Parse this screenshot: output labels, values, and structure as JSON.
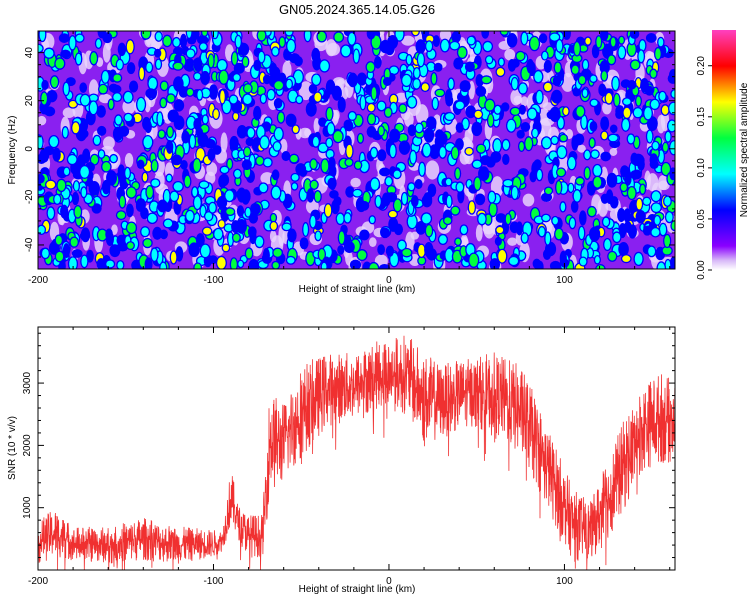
{
  "title": "GN05.2024.365.14.05.G26",
  "chart_data": [
    {
      "type": "heatmap",
      "xlabel": "Height of straight line (km)",
      "ylabel": "Frequency (Hz)",
      "xlim": [
        -200,
        163
      ],
      "ylim": [
        -50,
        49
      ],
      "x_ticks": [
        -200,
        -100,
        0,
        100
      ],
      "y_ticks": [
        -40,
        -20,
        0,
        20,
        40
      ],
      "colorbar": {
        "label": "Normalized spectral amplitude",
        "range": [
          0.0,
          0.235
        ],
        "ticks": [
          "0.00",
          "0.05",
          "0.10",
          "0.15",
          "0.20"
        ],
        "tick_values": [
          0.0,
          0.05,
          0.1,
          0.15,
          0.2
        ]
      },
      "colormap": [
        "#ffffff",
        "#b060f0",
        "#7a00ff",
        "#0000ff",
        "#00ffff",
        "#00ff40",
        "#ffff00",
        "#ff0000",
        "#ff40c0"
      ],
      "background_level": 0.03,
      "blob_level_range": [
        0.05,
        0.14
      ]
    },
    {
      "type": "line",
      "xlabel": "Height of straight line (km)",
      "ylabel": "SNR (10 * v/v)",
      "xlim": [
        -200,
        163
      ],
      "ylim": [
        0,
        3900
      ],
      "x_ticks": [
        -200,
        -100,
        0,
        100
      ],
      "y_ticks": [
        1000,
        2000,
        3000
      ],
      "color": "#f03030",
      "series": [
        {
          "envelope": [
            {
              "x": -200,
              "low": 100,
              "high": 800
            },
            {
              "x": -190,
              "low": 200,
              "high": 1000
            },
            {
              "x": -180,
              "low": 150,
              "high": 700
            },
            {
              "x": -160,
              "low": 100,
              "high": 700
            },
            {
              "x": -140,
              "low": 150,
              "high": 850
            },
            {
              "x": -120,
              "low": 100,
              "high": 700
            },
            {
              "x": -100,
              "low": 200,
              "high": 650
            },
            {
              "x": -95,
              "low": 300,
              "high": 650
            },
            {
              "x": -90,
              "low": 700,
              "high": 1650
            },
            {
              "x": -86,
              "low": 500,
              "high": 1050
            },
            {
              "x": -80,
              "low": 200,
              "high": 900
            },
            {
              "x": -72,
              "low": 200,
              "high": 900
            },
            {
              "x": -68,
              "low": 1200,
              "high": 2900
            },
            {
              "x": -60,
              "low": 1400,
              "high": 2700
            },
            {
              "x": -50,
              "low": 1800,
              "high": 3300
            },
            {
              "x": -35,
              "low": 2300,
              "high": 3500
            },
            {
              "x": -20,
              "low": 2400,
              "high": 3500
            },
            {
              "x": -5,
              "low": 2600,
              "high": 3700
            },
            {
              "x": 10,
              "low": 2500,
              "high": 3800
            },
            {
              "x": 20,
              "low": 2000,
              "high": 3500
            },
            {
              "x": 30,
              "low": 2100,
              "high": 3300
            },
            {
              "x": 45,
              "low": 2300,
              "high": 3400
            },
            {
              "x": 60,
              "low": 2200,
              "high": 3500
            },
            {
              "x": 75,
              "low": 1800,
              "high": 3300
            },
            {
              "x": 85,
              "low": 1300,
              "high": 2700
            },
            {
              "x": 95,
              "low": 700,
              "high": 2000
            },
            {
              "x": 105,
              "low": 150,
              "high": 1300
            },
            {
              "x": 115,
              "low": 150,
              "high": 1100
            },
            {
              "x": 125,
              "low": 500,
              "high": 1800
            },
            {
              "x": 135,
              "low": 1000,
              "high": 2500
            },
            {
              "x": 145,
              "low": 1600,
              "high": 3000
            },
            {
              "x": 155,
              "low": 1700,
              "high": 3200
            },
            {
              "x": 163,
              "low": 1700,
              "high": 3000
            }
          ]
        }
      ]
    }
  ]
}
